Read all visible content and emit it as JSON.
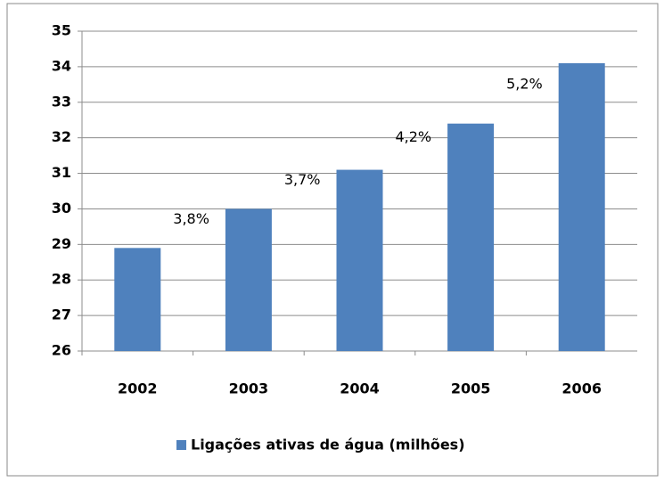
{
  "chart_data": {
    "type": "bar",
    "categories": [
      "2002",
      "2003",
      "2004",
      "2005",
      "2006"
    ],
    "series": [
      {
        "name": "Ligações ativas de água (milhões)",
        "color": "#4f81bd",
        "values": [
          28.9,
          30.0,
          31.1,
          32.4,
          34.1
        ]
      }
    ],
    "annotations": [
      "3,8%",
      "3,7%",
      "4,2%",
      "5,2%"
    ],
    "ylim": [
      26,
      35
    ],
    "yticks": [
      26,
      27,
      28,
      29,
      30,
      31,
      32,
      33,
      34,
      35
    ],
    "grid": true,
    "legend": "bottom"
  }
}
